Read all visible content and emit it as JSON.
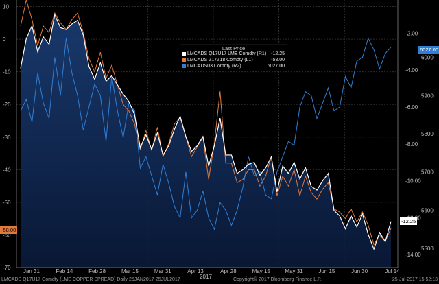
{
  "chart_data": {
    "type": "line",
    "xlabel": "2017",
    "x_ticks": [
      "Jan 31",
      "Feb 14",
      "Feb 28",
      "Mar 15",
      "Mar 31",
      "Apr 13",
      "Apr 28",
      "May 15",
      "May 31",
      "Jun 15",
      "Jun 30",
      "Jul 14"
    ],
    "left_axis": {
      "ticks": [
        10,
        0,
        -10,
        -20,
        -30,
        -40,
        -50,
        -60,
        -70
      ],
      "range": [
        -70,
        12
      ]
    },
    "right_axis_price": {
      "ticks": [
        "-2.00",
        "-4.00",
        "-6.00",
        "-8.00",
        "-10.00",
        "-12.00",
        "-14.00"
      ],
      "range": [
        -14.7,
        -0.2
      ]
    },
    "right_axis_stock": {
      "ticks": [
        "6000",
        "5900",
        "5800",
        "5700",
        "5600",
        "5500"
      ],
      "range": [
        5450,
        6150
      ]
    },
    "legend": {
      "title": "Last Price",
      "entries": [
        {
          "label": "LMCADS Q17U17 LME Comdty  (R1)",
          "value": "-12.25",
          "color": "#ffffff"
        },
        {
          "label": "LMCADS Z17Z18 Comdty  (L1)",
          "value": "-58.00",
          "color": "#e2793b"
        },
        {
          "label": "LMCADS03 Comdty  (R2)",
          "value": "6027.00",
          "color": "#2f7fd6"
        }
      ]
    },
    "last_value_tags": [
      {
        "text": "-58.00",
        "color": "#e2793b"
      },
      {
        "text": "-12.25",
        "color": "#ffffff"
      },
      {
        "text": "6027.00",
        "color": "#2f7fd6"
      }
    ],
    "series": [
      {
        "name": "LMCADS Q17U17 LME Comdty",
        "axis": "R1",
        "color": "#ffffff",
        "x": [
          0,
          2,
          4,
          6,
          8,
          10,
          12,
          14,
          16,
          18,
          20,
          22,
          24,
          26,
          28,
          30,
          32,
          34,
          36,
          38,
          40,
          42,
          44,
          46,
          48,
          50,
          52,
          54,
          56,
          58,
          60,
          62,
          64,
          66,
          68,
          70,
          72,
          74,
          76,
          78,
          80,
          82,
          84,
          86,
          88,
          90,
          92,
          94,
          96,
          98,
          100,
          102,
          104,
          106,
          108,
          110,
          112,
          114,
          116,
          118,
          120,
          122,
          124,
          126,
          128,
          130
        ],
        "values": [
          -3.9,
          -2.3,
          -1.6,
          -3.0,
          -2.2,
          -2.6,
          -1.0,
          -1.7,
          -1.8,
          -1.5,
          -1.3,
          -2.1,
          -3.8,
          -4.5,
          -3.6,
          -4.6,
          -4.3,
          -4.8,
          -5.3,
          -5.7,
          -6.4,
          -8.2,
          -7.5,
          -8.3,
          -7.4,
          -8.6,
          -8.1,
          -7.2,
          -6.5,
          -7.6,
          -8.4,
          -8.1,
          -7.6,
          -9.2,
          -8.1,
          -6.6,
          -8.6,
          -8.6,
          -9.6,
          -9.4,
          -9.1,
          -9.0,
          -9.7,
          -9.3,
          -8.7,
          -10.6,
          -9.2,
          -9.6,
          -9.0,
          -9.9,
          -9.3,
          -10.3,
          -10.5,
          -10.0,
          -9.6,
          -11.6,
          -11.9,
          -12.6,
          -11.9,
          -12.5,
          -11.8,
          -12.9,
          -13.7,
          -12.8,
          -13.3,
          -12.2
        ]
      },
      {
        "name": "LMCADS Z17Z18 Comdty",
        "axis": "L1",
        "color": "#e2793b",
        "x": [
          0,
          2,
          4,
          6,
          8,
          10,
          12,
          14,
          16,
          18,
          20,
          22,
          24,
          26,
          28,
          30,
          32,
          34,
          36,
          38,
          40,
          42,
          44,
          46,
          48,
          50,
          52,
          54,
          56,
          58,
          60,
          62,
          64,
          66,
          68,
          70,
          72,
          74,
          76,
          78,
          80,
          82,
          84,
          86,
          88,
          90,
          92,
          94,
          96,
          98,
          100,
          102,
          104,
          106,
          108,
          110,
          112,
          114,
          116,
          118,
          120,
          122,
          124,
          126,
          128,
          130
        ],
        "values": [
          4,
          12,
          6,
          -2,
          4,
          2,
          8,
          5,
          3,
          6,
          8,
          2,
          -6,
          -10,
          -4,
          -12,
          -8,
          -14,
          -20,
          -22,
          -26,
          -34,
          -28,
          -34,
          -27,
          -36,
          -32,
          -26,
          -24,
          -30,
          -36,
          -33,
          -30,
          -43,
          -32,
          -16,
          -38,
          -38,
          -44,
          -43,
          -40,
          -40,
          -45,
          -42,
          -36,
          -48,
          -42,
          -45,
          -40,
          -48,
          -42,
          -47,
          -49,
          -46,
          -44,
          -52,
          -53,
          -55,
          -52,
          -56,
          -53,
          -57,
          -63,
          -60,
          -62,
          -58
        ]
      },
      {
        "name": "LMCADS03 Comdty",
        "axis": "R2",
        "color": "#2f7fd6",
        "x": [
          0,
          2,
          4,
          6,
          8,
          10,
          12,
          14,
          16,
          18,
          20,
          22,
          24,
          26,
          28,
          30,
          32,
          34,
          36,
          38,
          40,
          42,
          44,
          46,
          48,
          50,
          52,
          54,
          56,
          58,
          60,
          62,
          64,
          66,
          68,
          70,
          72,
          74,
          76,
          78,
          80,
          82,
          84,
          86,
          88,
          90,
          92,
          94,
          96,
          98,
          100,
          102,
          104,
          106,
          108,
          110,
          112,
          114,
          116,
          118,
          120,
          122,
          124,
          126,
          128,
          130
        ],
        "values": [
          5860,
          5890,
          5830,
          5960,
          5880,
          5840,
          6000,
          5900,
          6050,
          5960,
          5900,
          5810,
          5870,
          5930,
          5900,
          5780,
          5950,
          5860,
          5790,
          5880,
          5860,
          5710,
          5740,
          5690,
          5640,
          5720,
          5670,
          5610,
          5580,
          5700,
          5580,
          5600,
          5650,
          5580,
          5550,
          5620,
          5600,
          5560,
          5600,
          5660,
          5740,
          5690,
          5700,
          5640,
          5630,
          5700,
          5740,
          5780,
          5770,
          5870,
          5910,
          5900,
          5840,
          5880,
          5920,
          5860,
          5870,
          5950,
          5920,
          5990,
          6000,
          6050,
          6020,
          5970,
          6010,
          6027
        ]
      }
    ]
  },
  "footer": {
    "left": "LMCADS Q17U17 Comdty (LME COPPER SPREAD)  Daily 25JAN2017-25JUL2017",
    "center": "Copyright© 2017 Bloomberg Finance L.P.",
    "right": "25-Jul-2017 15:52:13"
  }
}
